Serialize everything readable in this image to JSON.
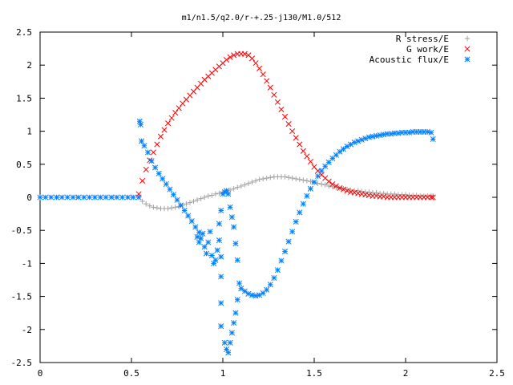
{
  "chart_data": {
    "type": "scatter",
    "title": "m1/n1.5/q2.0/r-+.25-j130/M1.0/512",
    "xlabel": "",
    "ylabel": "",
    "xlim": [
      0,
      2.5
    ],
    "ylim": [
      -2.5,
      2.5
    ],
    "x_ticks": [
      0,
      0.5,
      1,
      1.5,
      2,
      2.5
    ],
    "y_ticks": [
      -2.5,
      -2,
      -1.5,
      -1,
      -0.5,
      0,
      0.5,
      1,
      1.5,
      2,
      2.5
    ],
    "x_tick_labels": [
      "0",
      "0.5",
      "1",
      "1.5",
      "2",
      "2.5"
    ],
    "y_tick_labels": [
      "-2.5",
      "-2",
      "-1.5",
      "-1",
      "-0.5",
      "0",
      "0.5",
      "1",
      "1.5",
      "2",
      "2.5"
    ],
    "grid": false,
    "legend_position": "top-right",
    "series": [
      {
        "name": "R stress/E",
        "marker": "plus",
        "color": "#a0a0a0",
        "points": [
          [
            0.0,
            0.0
          ],
          [
            0.1,
            0.0
          ],
          [
            0.2,
            0.0
          ],
          [
            0.3,
            0.0
          ],
          [
            0.4,
            0.0
          ],
          [
            0.5,
            0.0
          ],
          [
            0.54,
            0.0
          ],
          [
            0.56,
            -0.06
          ],
          [
            0.58,
            -0.1
          ],
          [
            0.6,
            -0.13
          ],
          [
            0.62,
            -0.15
          ],
          [
            0.64,
            -0.16
          ],
          [
            0.66,
            -0.17
          ],
          [
            0.68,
            -0.17
          ],
          [
            0.7,
            -0.17
          ],
          [
            0.72,
            -0.16
          ],
          [
            0.74,
            -0.15
          ],
          [
            0.76,
            -0.14
          ],
          [
            0.78,
            -0.12
          ],
          [
            0.8,
            -0.1
          ],
          [
            0.82,
            -0.08
          ],
          [
            0.84,
            -0.06
          ],
          [
            0.86,
            -0.04
          ],
          [
            0.88,
            -0.02
          ],
          [
            0.9,
            0.0
          ],
          [
            0.92,
            0.02
          ],
          [
            0.94,
            0.03
          ],
          [
            0.96,
            0.05
          ],
          [
            0.98,
            0.06
          ],
          [
            1.0,
            0.08
          ],
          [
            1.02,
            0.09
          ],
          [
            1.04,
            0.11
          ],
          [
            1.06,
            0.13
          ],
          [
            1.08,
            0.15
          ],
          [
            1.1,
            0.17
          ],
          [
            1.12,
            0.19
          ],
          [
            1.14,
            0.21
          ],
          [
            1.16,
            0.23
          ],
          [
            1.18,
            0.25
          ],
          [
            1.2,
            0.27
          ],
          [
            1.22,
            0.28
          ],
          [
            1.24,
            0.29
          ],
          [
            1.26,
            0.3
          ],
          [
            1.28,
            0.31
          ],
          [
            1.3,
            0.31
          ],
          [
            1.32,
            0.31
          ],
          [
            1.34,
            0.31
          ],
          [
            1.36,
            0.3
          ],
          [
            1.38,
            0.29
          ],
          [
            1.4,
            0.28
          ],
          [
            1.42,
            0.27
          ],
          [
            1.44,
            0.26
          ],
          [
            1.46,
            0.25
          ],
          [
            1.48,
            0.24
          ],
          [
            1.5,
            0.22
          ],
          [
            1.52,
            0.21
          ],
          [
            1.54,
            0.2
          ],
          [
            1.56,
            0.19
          ],
          [
            1.58,
            0.17
          ],
          [
            1.6,
            0.16
          ],
          [
            1.62,
            0.15
          ],
          [
            1.64,
            0.14
          ],
          [
            1.66,
            0.13
          ],
          [
            1.68,
            0.12
          ],
          [
            1.7,
            0.11
          ],
          [
            1.72,
            0.1
          ],
          [
            1.74,
            0.1
          ],
          [
            1.76,
            0.09
          ],
          [
            1.78,
            0.08
          ],
          [
            1.8,
            0.08
          ],
          [
            1.82,
            0.07
          ],
          [
            1.84,
            0.07
          ],
          [
            1.86,
            0.06
          ],
          [
            1.88,
            0.06
          ],
          [
            1.9,
            0.05
          ],
          [
            1.92,
            0.05
          ],
          [
            1.94,
            0.05
          ],
          [
            1.96,
            0.04
          ],
          [
            1.98,
            0.04
          ],
          [
            2.0,
            0.04
          ],
          [
            2.02,
            0.03
          ],
          [
            2.04,
            0.03
          ],
          [
            2.06,
            0.03
          ],
          [
            2.08,
            0.02
          ],
          [
            2.1,
            0.02
          ],
          [
            2.12,
            0.02
          ],
          [
            2.14,
            0.02
          ],
          [
            2.15,
            0.02
          ]
        ]
      },
      {
        "name": "G work/E",
        "marker": "cross",
        "color": "#ff0000",
        "points": [
          [
            0.54,
            0.05
          ],
          [
            0.56,
            0.25
          ],
          [
            0.58,
            0.42
          ],
          [
            0.6,
            0.56
          ],
          [
            0.62,
            0.68
          ],
          [
            0.64,
            0.8
          ],
          [
            0.66,
            0.92
          ],
          [
            0.68,
            1.02
          ],
          [
            0.7,
            1.12
          ],
          [
            0.72,
            1.2
          ],
          [
            0.74,
            1.28
          ],
          [
            0.76,
            1.35
          ],
          [
            0.78,
            1.42
          ],
          [
            0.8,
            1.48
          ],
          [
            0.82,
            1.54
          ],
          [
            0.84,
            1.6
          ],
          [
            0.86,
            1.66
          ],
          [
            0.88,
            1.72
          ],
          [
            0.9,
            1.78
          ],
          [
            0.92,
            1.83
          ],
          [
            0.94,
            1.88
          ],
          [
            0.96,
            1.93
          ],
          [
            0.98,
            1.98
          ],
          [
            1.0,
            2.03
          ],
          [
            1.02,
            2.08
          ],
          [
            1.04,
            2.12
          ],
          [
            1.06,
            2.15
          ],
          [
            1.08,
            2.17
          ],
          [
            1.1,
            2.17
          ],
          [
            1.12,
            2.17
          ],
          [
            1.14,
            2.15
          ],
          [
            1.16,
            2.1
          ],
          [
            1.18,
            2.03
          ],
          [
            1.2,
            1.95
          ],
          [
            1.22,
            1.86
          ],
          [
            1.24,
            1.76
          ],
          [
            1.26,
            1.66
          ],
          [
            1.28,
            1.55
          ],
          [
            1.3,
            1.44
          ],
          [
            1.32,
            1.33
          ],
          [
            1.34,
            1.22
          ],
          [
            1.36,
            1.11
          ],
          [
            1.38,
            1.0
          ],
          [
            1.4,
            0.9
          ],
          [
            1.42,
            0.8
          ],
          [
            1.44,
            0.7
          ],
          [
            1.46,
            0.62
          ],
          [
            1.48,
            0.54
          ],
          [
            1.5,
            0.46
          ],
          [
            1.52,
            0.4
          ],
          [
            1.54,
            0.34
          ],
          [
            1.56,
            0.29
          ],
          [
            1.58,
            0.24
          ],
          [
            1.6,
            0.2
          ],
          [
            1.62,
            0.17
          ],
          [
            1.64,
            0.14
          ],
          [
            1.66,
            0.12
          ],
          [
            1.68,
            0.1
          ],
          [
            1.7,
            0.08
          ],
          [
            1.72,
            0.07
          ],
          [
            1.74,
            0.06
          ],
          [
            1.76,
            0.05
          ],
          [
            1.78,
            0.04
          ],
          [
            1.8,
            0.03
          ],
          [
            1.82,
            0.02
          ],
          [
            1.84,
            0.02
          ],
          [
            1.86,
            0.01
          ],
          [
            1.88,
            0.01
          ],
          [
            1.9,
            0.0
          ],
          [
            1.92,
            0.0
          ],
          [
            1.94,
            0.0
          ],
          [
            1.96,
            0.0
          ],
          [
            1.98,
            0.0
          ],
          [
            2.0,
            0.0
          ],
          [
            2.02,
            0.0
          ],
          [
            2.04,
            0.0
          ],
          [
            2.06,
            0.0
          ],
          [
            2.08,
            0.0
          ],
          [
            2.1,
            0.0
          ],
          [
            2.12,
            0.0
          ],
          [
            2.14,
            0.0
          ],
          [
            2.15,
            0.0
          ]
        ]
      },
      {
        "name": "Acoustic flux/E",
        "marker": "star",
        "color": "#0080ff",
        "points": [
          [
            0.0,
            0.0
          ],
          [
            0.03,
            0.0
          ],
          [
            0.06,
            0.0
          ],
          [
            0.09,
            0.0
          ],
          [
            0.12,
            0.0
          ],
          [
            0.15,
            0.0
          ],
          [
            0.18,
            0.0
          ],
          [
            0.21,
            0.0
          ],
          [
            0.24,
            0.0
          ],
          [
            0.27,
            0.0
          ],
          [
            0.3,
            0.0
          ],
          [
            0.33,
            0.0
          ],
          [
            0.36,
            0.0
          ],
          [
            0.39,
            0.0
          ],
          [
            0.42,
            0.0
          ],
          [
            0.45,
            0.0
          ],
          [
            0.48,
            0.0
          ],
          [
            0.51,
            0.0
          ],
          [
            0.54,
            0.0
          ],
          [
            0.545,
            1.15
          ],
          [
            0.55,
            1.1
          ],
          [
            0.555,
            0.85
          ],
          [
            0.57,
            0.78
          ],
          [
            0.59,
            0.68
          ],
          [
            0.61,
            0.55
          ],
          [
            0.63,
            0.45
          ],
          [
            0.65,
            0.36
          ],
          [
            0.67,
            0.28
          ],
          [
            0.69,
            0.2
          ],
          [
            0.71,
            0.12
          ],
          [
            0.73,
            0.04
          ],
          [
            0.75,
            -0.04
          ],
          [
            0.77,
            -0.12
          ],
          [
            0.79,
            -0.2
          ],
          [
            0.81,
            -0.28
          ],
          [
            0.83,
            -0.36
          ],
          [
            0.85,
            -0.45
          ],
          [
            0.87,
            -0.53
          ],
          [
            0.86,
            -0.6
          ],
          [
            0.87,
            -0.68
          ],
          [
            0.88,
            -0.62
          ],
          [
            0.89,
            -0.55
          ],
          [
            0.9,
            -0.75
          ],
          [
            0.91,
            -0.85
          ],
          [
            0.92,
            -0.68
          ],
          [
            0.93,
            -0.52
          ],
          [
            0.94,
            -0.88
          ],
          [
            0.95,
            -1.0
          ],
          [
            0.96,
            -0.95
          ],
          [
            0.97,
            -0.8
          ],
          [
            0.98,
            -0.65
          ],
          [
            0.99,
            -0.9
          ],
          [
            1.0,
            0.05
          ],
          [
            1.01,
            0.08
          ],
          [
            1.02,
            0.1
          ],
          [
            1.03,
            0.05
          ],
          [
            0.99,
            -0.2
          ],
          [
            0.98,
            -0.4
          ],
          [
            0.99,
            -1.2
          ],
          [
            0.99,
            -1.6
          ],
          [
            0.99,
            -1.95
          ],
          [
            1.01,
            -2.2
          ],
          [
            1.02,
            -2.3
          ],
          [
            1.03,
            -2.35
          ],
          [
            1.04,
            -2.2
          ],
          [
            1.05,
            -2.05
          ],
          [
            1.06,
            -1.9
          ],
          [
            1.07,
            -1.75
          ],
          [
            1.08,
            -1.55
          ],
          [
            1.09,
            -1.3
          ],
          [
            1.08,
            -0.95
          ],
          [
            1.07,
            -0.7
          ],
          [
            1.06,
            -0.45
          ],
          [
            1.05,
            -0.3
          ],
          [
            1.04,
            -0.15
          ],
          [
            1.1,
            -1.38
          ],
          [
            1.12,
            -1.42
          ],
          [
            1.14,
            -1.46
          ],
          [
            1.16,
            -1.48
          ],
          [
            1.18,
            -1.49
          ],
          [
            1.2,
            -1.48
          ],
          [
            1.22,
            -1.45
          ],
          [
            1.24,
            -1.4
          ],
          [
            1.26,
            -1.32
          ],
          [
            1.28,
            -1.22
          ],
          [
            1.3,
            -1.1
          ],
          [
            1.32,
            -0.96
          ],
          [
            1.34,
            -0.82
          ],
          [
            1.36,
            -0.67
          ],
          [
            1.38,
            -0.52
          ],
          [
            1.4,
            -0.37
          ],
          [
            1.42,
            -0.23
          ],
          [
            1.44,
            -0.1
          ],
          [
            1.46,
            0.02
          ],
          [
            1.48,
            0.13
          ],
          [
            1.5,
            0.23
          ],
          [
            1.52,
            0.32
          ],
          [
            1.54,
            0.4
          ],
          [
            1.56,
            0.47
          ],
          [
            1.58,
            0.53
          ],
          [
            1.6,
            0.59
          ],
          [
            1.62,
            0.64
          ],
          [
            1.64,
            0.69
          ],
          [
            1.66,
            0.73
          ],
          [
            1.68,
            0.77
          ],
          [
            1.7,
            0.8
          ],
          [
            1.72,
            0.83
          ],
          [
            1.74,
            0.85
          ],
          [
            1.76,
            0.87
          ],
          [
            1.78,
            0.89
          ],
          [
            1.8,
            0.91
          ],
          [
            1.82,
            0.92
          ],
          [
            1.84,
            0.93
          ],
          [
            1.86,
            0.94
          ],
          [
            1.88,
            0.95
          ],
          [
            1.9,
            0.96
          ],
          [
            1.92,
            0.96
          ],
          [
            1.94,
            0.97
          ],
          [
            1.96,
            0.97
          ],
          [
            1.98,
            0.98
          ],
          [
            2.0,
            0.98
          ],
          [
            2.02,
            0.98
          ],
          [
            2.04,
            0.99
          ],
          [
            2.06,
            0.99
          ],
          [
            2.08,
            0.99
          ],
          [
            2.1,
            0.99
          ],
          [
            2.12,
            0.99
          ],
          [
            2.14,
            0.98
          ],
          [
            2.15,
            0.88
          ]
        ]
      }
    ]
  }
}
